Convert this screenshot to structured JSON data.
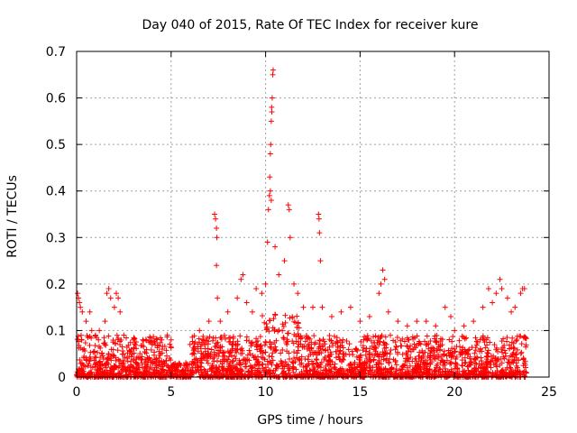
{
  "chart_data": {
    "type": "scatter",
    "title": "Day 040 of 2015, Rate Of TEC Index for receiver kure",
    "xlabel": "GPS time / hours",
    "ylabel": "ROTI / TECUs",
    "xlim": [
      0,
      25
    ],
    "ylim": [
      0,
      0.7
    ],
    "x_ticks": [
      0,
      5,
      10,
      15,
      20,
      25
    ],
    "x_tick_labels": [
      "0",
      "5",
      "10",
      "15",
      "20",
      "25"
    ],
    "y_ticks": [
      0,
      0.1,
      0.2,
      0.3,
      0.4,
      0.5,
      0.6,
      0.7
    ],
    "y_tick_labels": [
      "0",
      "0.1",
      "0.2",
      "0.3",
      "0.4",
      "0.5",
      "0.6",
      "0.7"
    ],
    "grid": true,
    "marker": "+",
    "color": "#ff0000",
    "series": [
      {
        "name": "ROTI",
        "points": [
          [
            0.05,
            0.18
          ],
          [
            0.1,
            0.17
          ],
          [
            0.15,
            0.16
          ],
          [
            0.2,
            0.15
          ],
          [
            0.3,
            0.14
          ],
          [
            0.5,
            0.12
          ],
          [
            0.7,
            0.14
          ],
          [
            0.8,
            0.1
          ],
          [
            1.0,
            0.09
          ],
          [
            1.2,
            0.1
          ],
          [
            1.5,
            0.12
          ],
          [
            1.6,
            0.18
          ],
          [
            1.7,
            0.19
          ],
          [
            1.8,
            0.17
          ],
          [
            2.0,
            0.15
          ],
          [
            2.1,
            0.18
          ],
          [
            2.2,
            0.17
          ],
          [
            2.3,
            0.14
          ],
          [
            2.5,
            0.09
          ],
          [
            3.0,
            0.08
          ],
          [
            3.5,
            0.08
          ],
          [
            4.0,
            0.07
          ],
          [
            4.5,
            0.08
          ],
          [
            4.8,
            0.09
          ],
          [
            5.0,
            0.08
          ],
          [
            6.0,
            0.07
          ],
          [
            6.5,
            0.1
          ],
          [
            7.0,
            0.12
          ],
          [
            7.3,
            0.35
          ],
          [
            7.35,
            0.34
          ],
          [
            7.4,
            0.32
          ],
          [
            7.42,
            0.3
          ],
          [
            7.4,
            0.24
          ],
          [
            7.45,
            0.17
          ],
          [
            7.6,
            0.12
          ],
          [
            8.0,
            0.14
          ],
          [
            8.5,
            0.17
          ],
          [
            8.7,
            0.21
          ],
          [
            8.8,
            0.22
          ],
          [
            9.0,
            0.16
          ],
          [
            9.3,
            0.14
          ],
          [
            9.5,
            0.19
          ],
          [
            9.8,
            0.18
          ],
          [
            10.0,
            0.2
          ],
          [
            10.1,
            0.29
          ],
          [
            10.15,
            0.36
          ],
          [
            10.2,
            0.39
          ],
          [
            10.22,
            0.43
          ],
          [
            10.25,
            0.48
          ],
          [
            10.27,
            0.5
          ],
          [
            10.3,
            0.55
          ],
          [
            10.32,
            0.58
          ],
          [
            10.35,
            0.6
          ],
          [
            10.38,
            0.65
          ],
          [
            10.4,
            0.66
          ],
          [
            10.33,
            0.57
          ],
          [
            10.25,
            0.4
          ],
          [
            10.3,
            0.38
          ],
          [
            10.5,
            0.28
          ],
          [
            10.7,
            0.22
          ],
          [
            11.0,
            0.25
          ],
          [
            11.2,
            0.37
          ],
          [
            11.25,
            0.36
          ],
          [
            11.3,
            0.3
          ],
          [
            11.5,
            0.2
          ],
          [
            11.7,
            0.18
          ],
          [
            12.0,
            0.15
          ],
          [
            12.5,
            0.15
          ],
          [
            12.8,
            0.35
          ],
          [
            12.83,
            0.34
          ],
          [
            12.85,
            0.31
          ],
          [
            12.9,
            0.25
          ],
          [
            13.0,
            0.15
          ],
          [
            13.5,
            0.13
          ],
          [
            14.0,
            0.14
          ],
          [
            14.5,
            0.15
          ],
          [
            15.0,
            0.12
          ],
          [
            15.5,
            0.13
          ],
          [
            16.0,
            0.18
          ],
          [
            16.1,
            0.2
          ],
          [
            16.2,
            0.23
          ],
          [
            16.3,
            0.21
          ],
          [
            16.5,
            0.14
          ],
          [
            17.0,
            0.12
          ],
          [
            17.5,
            0.11
          ],
          [
            18.0,
            0.12
          ],
          [
            18.5,
            0.12
          ],
          [
            19.0,
            0.11
          ],
          [
            19.5,
            0.15
          ],
          [
            19.8,
            0.13
          ],
          [
            20.0,
            0.1
          ],
          [
            20.5,
            0.11
          ],
          [
            21.0,
            0.12
          ],
          [
            21.5,
            0.15
          ],
          [
            21.8,
            0.19
          ],
          [
            22.0,
            0.16
          ],
          [
            22.2,
            0.18
          ],
          [
            22.4,
            0.21
          ],
          [
            22.5,
            0.19
          ],
          [
            22.8,
            0.17
          ],
          [
            23.0,
            0.14
          ],
          [
            23.2,
            0.15
          ],
          [
            23.5,
            0.18
          ],
          [
            23.6,
            0.19
          ],
          [
            23.7,
            0.19
          ]
        ]
      }
    ],
    "noise_floor_description": "dense band of points between 0 and ~0.1 across 0–23.8 h"
  }
}
